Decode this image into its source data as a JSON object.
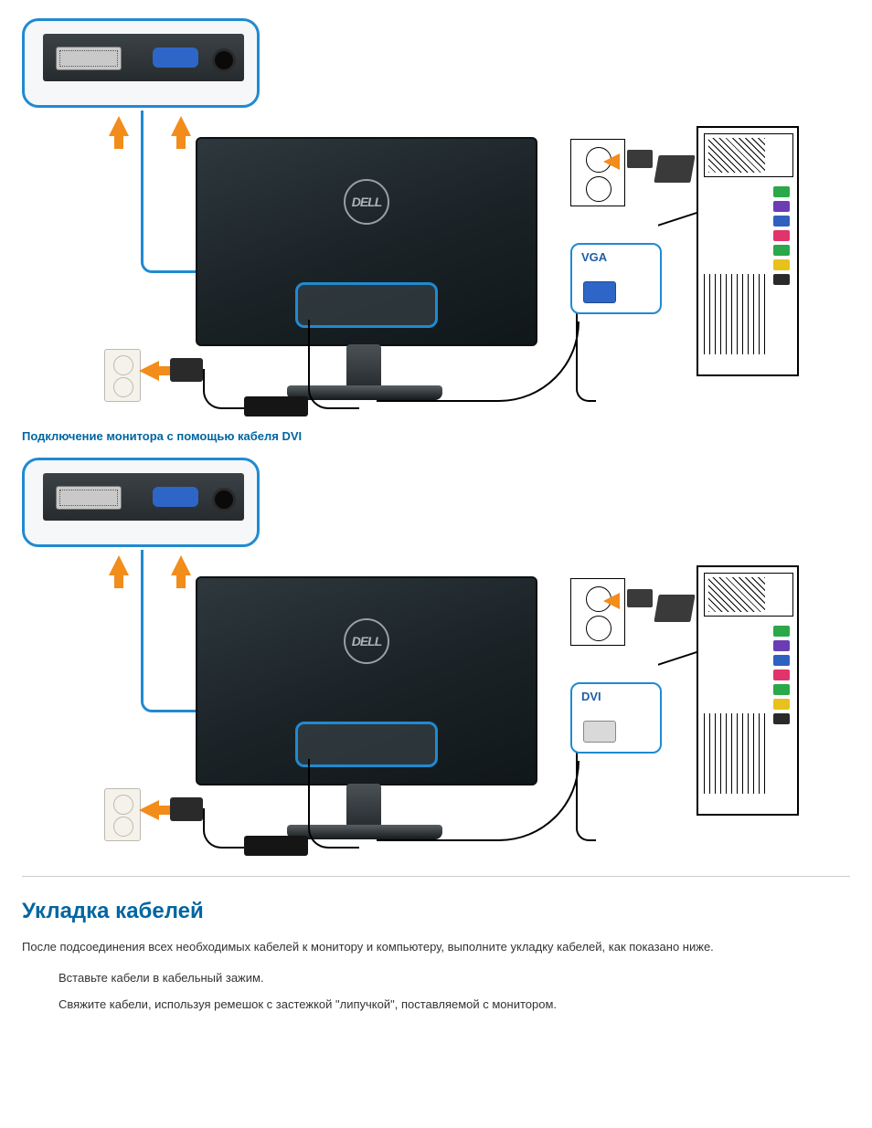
{
  "figure1": {
    "connector_label": "VGA",
    "connector_label_color": "#1d5fa7",
    "connector_plug_color": "#2d66c6",
    "logo": "DELL",
    "io_port_colors": [
      "#2aa84a",
      "#6a3db5",
      "#3060c0",
      "#e0356a",
      "#2aa84a",
      "#e8c21a",
      "#2a2a2a"
    ]
  },
  "caption1": "Подключение монитора с помощью кабеля DVI",
  "figure2": {
    "connector_label": "DVI",
    "connector_label_color": "#1d5fa7",
    "connector_plug_color": "#d9d9d9",
    "logo": "DELL",
    "io_port_colors": [
      "#2aa84a",
      "#6a3db5",
      "#3060c0",
      "#e0356a",
      "#2aa84a",
      "#e8c21a",
      "#2a2a2a"
    ]
  },
  "section_heading": "Укладка кабелей",
  "intro": "После подсоединения всех необходимых кабелей к монитору и компьютеру, выполните укладку кабелей, как показано ниже.",
  "step1": "Вставьте кабели в кабельный зажим.",
  "step2": "Свяжите кабели, используя ремешок с застежкой \"липучкой\", поставляемой с монитором.",
  "colors": {
    "accent": "#1f8ad2",
    "heading": "#0066a1",
    "arrow": "#f28c1a"
  }
}
